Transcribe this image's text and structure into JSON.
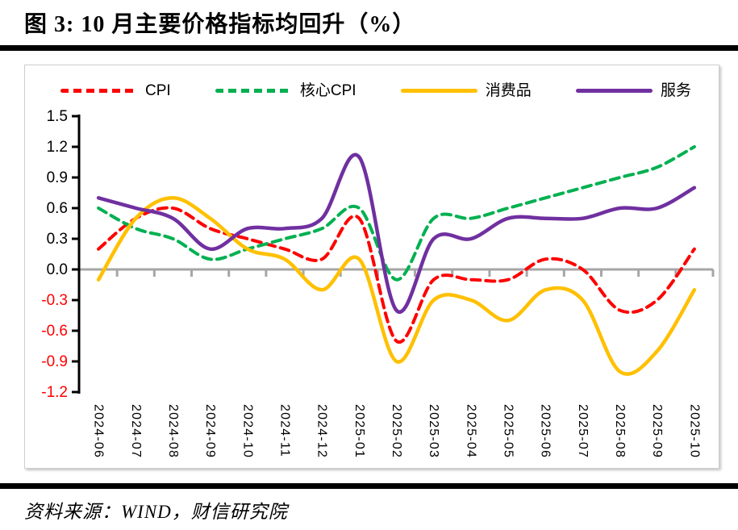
{
  "page": {
    "title": "图 3: 10 月主要价格指标均回升（%）",
    "source": "资料来源：WIND，财信研究院"
  },
  "chart_data": {
    "type": "line",
    "title": "图 3: 10 月主要价格指标均回升（%）",
    "x": [
      "2024-06",
      "2024-07",
      "2024-08",
      "2024-09",
      "2024-10",
      "2024-11",
      "2024-12",
      "2025-01",
      "2025-02",
      "2025-03",
      "2025-04",
      "2025-05",
      "2025-06",
      "2025-07",
      "2025-08",
      "2025-09",
      "2025-10"
    ],
    "series": [
      {
        "name": "CPI",
        "color": "#FF0000",
        "dashed": true,
        "values": [
          0.2,
          0.5,
          0.6,
          0.4,
          0.3,
          0.2,
          0.1,
          0.5,
          -0.7,
          -0.1,
          -0.1,
          -0.1,
          0.1,
          0.0,
          -0.4,
          -0.3,
          0.2
        ]
      },
      {
        "name": "核心CPI",
        "color": "#00B050",
        "dashed": true,
        "values": [
          0.6,
          0.4,
          0.3,
          0.1,
          0.2,
          0.3,
          0.4,
          0.6,
          -0.1,
          0.5,
          0.5,
          0.6,
          0.7,
          0.8,
          0.9,
          1.0,
          1.2
        ]
      },
      {
        "name": "消费品",
        "color": "#FFC000",
        "dashed": false,
        "values": [
          -0.1,
          0.5,
          0.7,
          0.5,
          0.2,
          0.1,
          -0.2,
          0.1,
          -0.9,
          -0.3,
          -0.3,
          -0.5,
          -0.2,
          -0.3,
          -1.0,
          -0.8,
          -0.2
        ]
      },
      {
        "name": "服务",
        "color": "#7030A0",
        "dashed": false,
        "values": [
          0.7,
          0.6,
          0.5,
          0.2,
          0.4,
          0.4,
          0.5,
          1.1,
          -0.4,
          0.3,
          0.3,
          0.5,
          0.5,
          0.5,
          0.6,
          0.6,
          0.8
        ]
      }
    ],
    "y_tick_labels": [
      "1.5",
      "1.2",
      "0.9",
      "0.6",
      "0.3",
      "0.0",
      "-0.3",
      "-0.6",
      "-0.9",
      "-1.2"
    ],
    "ylim": [
      -1.2,
      1.5
    ],
    "y_step": 0.3,
    "xlabel": "",
    "ylabel": "",
    "grid": false,
    "legend_position": "top",
    "colors": {
      "axis": "#000000",
      "zero_line": "#A6A6A6",
      "tick_label_positive": "#000000",
      "tick_label_negative": "#FF0000"
    }
  }
}
